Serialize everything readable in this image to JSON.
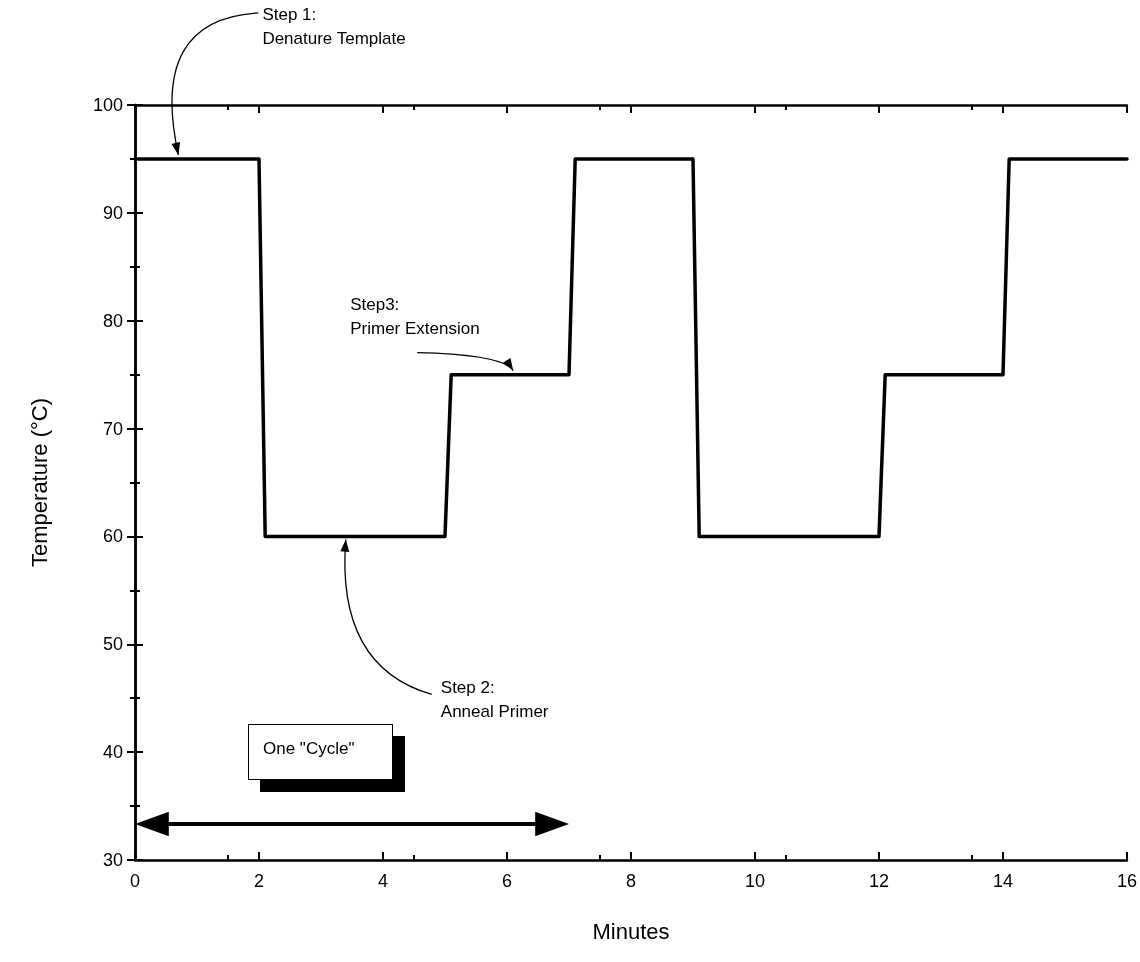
{
  "chart_data": {
    "type": "line",
    "xlabel": "Minutes",
    "ylabel": "Temperature (°C)",
    "xlim": [
      0,
      16
    ],
    "xticks": [
      0,
      2,
      4,
      6,
      8,
      10,
      12,
      14,
      16
    ],
    "ylim": [
      30,
      100
    ],
    "yticks": [
      30,
      40,
      50,
      60,
      70,
      80,
      90,
      100
    ],
    "grid": false,
    "marker": "none",
    "line_style": "solid",
    "series": [
      {
        "color": "#000000",
        "x": [
          0,
          2,
          2.1,
          5,
          5.1,
          7,
          7.1,
          9,
          9.1,
          12,
          12.1,
          14,
          14.1,
          16
        ],
        "values": [
          95,
          95,
          60,
          60,
          75,
          75,
          95,
          95,
          60,
          60,
          75,
          75,
          95,
          95
        ]
      }
    ],
    "annotations": [
      {
        "text": "Step 1:\nDenature Template",
        "x": 0.7,
        "y": 95
      },
      {
        "text": "Step3:\nPrimer Extension",
        "x": 6.1,
        "y": 75
      },
      {
        "text": "Step 2:\nAnneal Primer",
        "x": 3.4,
        "y": 60
      },
      "One \"Cycle\""
    ]
  }
}
